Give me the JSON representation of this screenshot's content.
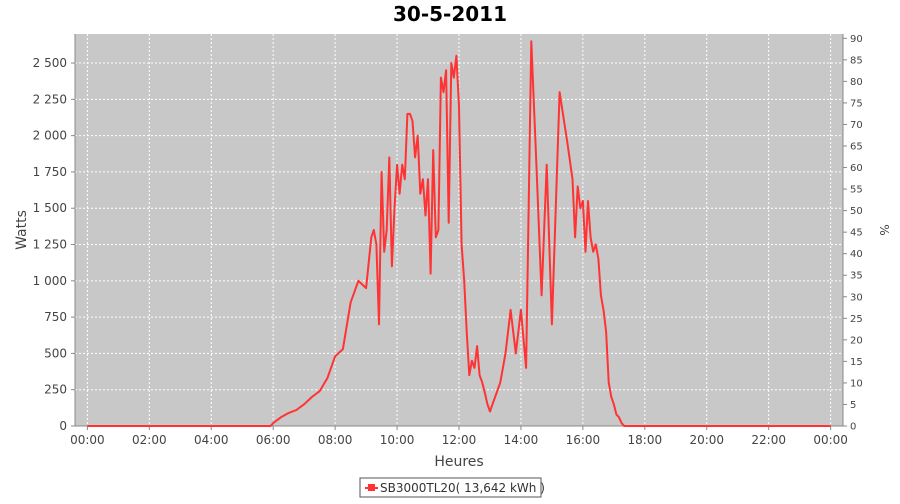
{
  "chart_data": {
    "type": "line",
    "title": "30-5-2011",
    "xlabel": "Heures",
    "ylabel": "Watts",
    "y2label": "%",
    "x_ticks": [
      "00:00",
      "02:00",
      "04:00",
      "06:00",
      "08:00",
      "10:00",
      "12:00",
      "14:00",
      "16:00",
      "18:00",
      "20:00",
      "22:00",
      "00:00"
    ],
    "y_ticks": [
      "0",
      "250",
      "500",
      "750",
      "1 000",
      "1 250",
      "1 500",
      "1 750",
      "2 000",
      "2 250",
      "2 500"
    ],
    "y2_ticks": [
      "0",
      "5",
      "10",
      "15",
      "20",
      "25",
      "30",
      "35",
      "40",
      "45",
      "50",
      "55",
      "60",
      "65",
      "70",
      "75",
      "80",
      "85",
      "90"
    ],
    "xlim_hours": [
      -0.4,
      24.4
    ],
    "ylim": [
      0,
      2700
    ],
    "y2lim": [
      0,
      91
    ],
    "grid": true,
    "legend_position": "bottom-center",
    "colors": {
      "series": "#ff3333",
      "plot_bg": "#c8c8c8",
      "grid": "#ffffff"
    },
    "series": [
      {
        "name": "SB3000TL20( 13,642 kWh )",
        "x": [
          "00:00",
          "05:55",
          "06:00",
          "06:15",
          "06:30",
          "06:45",
          "07:00",
          "07:15",
          "07:30",
          "07:45",
          "08:00",
          "08:15",
          "08:30",
          "08:45",
          "09:00",
          "09:10",
          "09:15",
          "09:20",
          "09:25",
          "09:30",
          "09:35",
          "09:40",
          "09:45",
          "09:50",
          "09:55",
          "10:00",
          "10:05",
          "10:10",
          "10:15",
          "10:20",
          "10:25",
          "10:30",
          "10:35",
          "10:40",
          "10:45",
          "10:50",
          "10:55",
          "11:00",
          "11:05",
          "11:10",
          "11:15",
          "11:20",
          "11:25",
          "11:30",
          "11:35",
          "11:40",
          "11:45",
          "11:50",
          "11:55",
          "12:00",
          "12:05",
          "12:10",
          "12:15",
          "12:20",
          "12:25",
          "12:30",
          "12:35",
          "12:40",
          "12:45",
          "12:50",
          "12:55",
          "13:00",
          "13:05",
          "13:10",
          "13:15",
          "13:20",
          "13:30",
          "13:40",
          "13:50",
          "14:00",
          "14:10",
          "14:20",
          "14:30",
          "14:40",
          "14:50",
          "15:00",
          "15:15",
          "15:30",
          "15:40",
          "15:45",
          "15:50",
          "15:55",
          "16:00",
          "16:05",
          "16:10",
          "16:15",
          "16:20",
          "16:25",
          "16:30",
          "16:35",
          "16:40",
          "16:45",
          "16:50",
          "16:55",
          "17:00",
          "17:05",
          "17:10",
          "17:15",
          "17:20",
          "17:25",
          "17:30",
          "17:35",
          "17:40",
          "17:45",
          "17:50",
          "18:00",
          "18:10",
          "18:20",
          "18:30",
          "18:45",
          "19:00",
          "19:15",
          "19:30",
          "19:45",
          "20:00",
          "22:00",
          "24:00"
        ],
        "values": [
          0,
          0,
          20,
          60,
          90,
          110,
          150,
          200,
          240,
          330,
          480,
          530,
          850,
          1000,
          950,
          1300,
          1350,
          1250,
          700,
          1750,
          1200,
          1350,
          1850,
          1100,
          1500,
          1800,
          1600,
          1800,
          1700,
          2150,
          2150,
          2100,
          1850,
          2000,
          1600,
          1700,
          1450,
          1700,
          1050,
          1900,
          1300,
          1350,
          2400,
          2300,
          2450,
          1400,
          2500,
          2400,
          2550,
          2200,
          1250,
          1000,
          650,
          350,
          450,
          400,
          550,
          350,
          300,
          230,
          150,
          100,
          150,
          200,
          250,
          300,
          500,
          800,
          500,
          800,
          400,
          2650,
          1800,
          900,
          1800,
          700,
          2300,
          1950,
          1700,
          1300,
          1650,
          1500,
          1550,
          1200,
          1550,
          1300,
          1200,
          1250,
          1150,
          900,
          800,
          650,
          300,
          200,
          150,
          80,
          60,
          20,
          0,
          0,
          0,
          0,
          0,
          0,
          0,
          0,
          0,
          0,
          0,
          0,
          0,
          0,
          0,
          0,
          0,
          0,
          0
        ]
      }
    ]
  }
}
